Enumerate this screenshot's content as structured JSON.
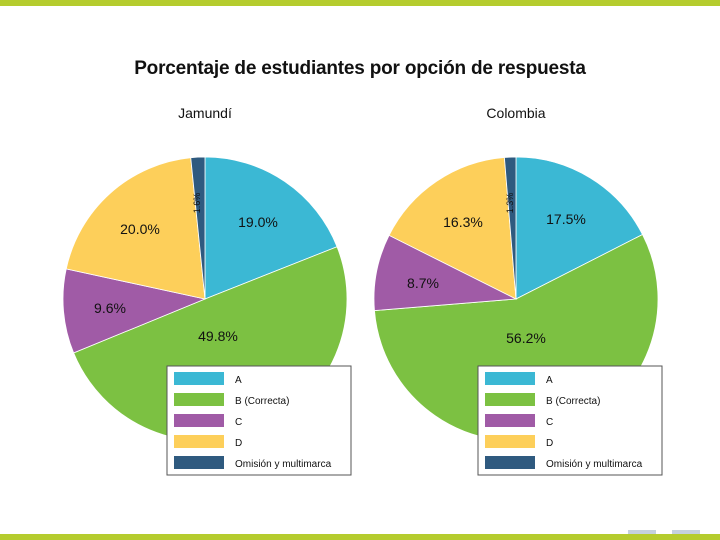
{
  "colors": {
    "A": "#3bb8d4",
    "B": "#7cc142",
    "C": "#a05ba6",
    "D": "#fdcf5a",
    "omision": "#2f5a7f",
    "accent_bar": "#b5cc2e"
  },
  "chart_data": {
    "type": "pie",
    "title": "Porcentaje de estudiantes por opción de respuesta",
    "categories": [
      "A",
      "B (Correcta)",
      "C",
      "D",
      "Omisión y multimarca"
    ],
    "series": [
      {
        "name": "Jamundí",
        "values": [
          19.0,
          49.8,
          9.6,
          20.0,
          1.6
        ],
        "labels": [
          "19.0%",
          "49.8%",
          "9.6%",
          "20.0%",
          "1.6%"
        ]
      },
      {
        "name": "Colombia",
        "values": [
          17.5,
          56.2,
          8.7,
          16.3,
          1.3
        ],
        "labels": [
          "17.5%",
          "56.2%",
          "8.7%",
          "16.3%",
          "1.3%"
        ]
      }
    ],
    "legend_position": "bottom-right (each pie)"
  }
}
